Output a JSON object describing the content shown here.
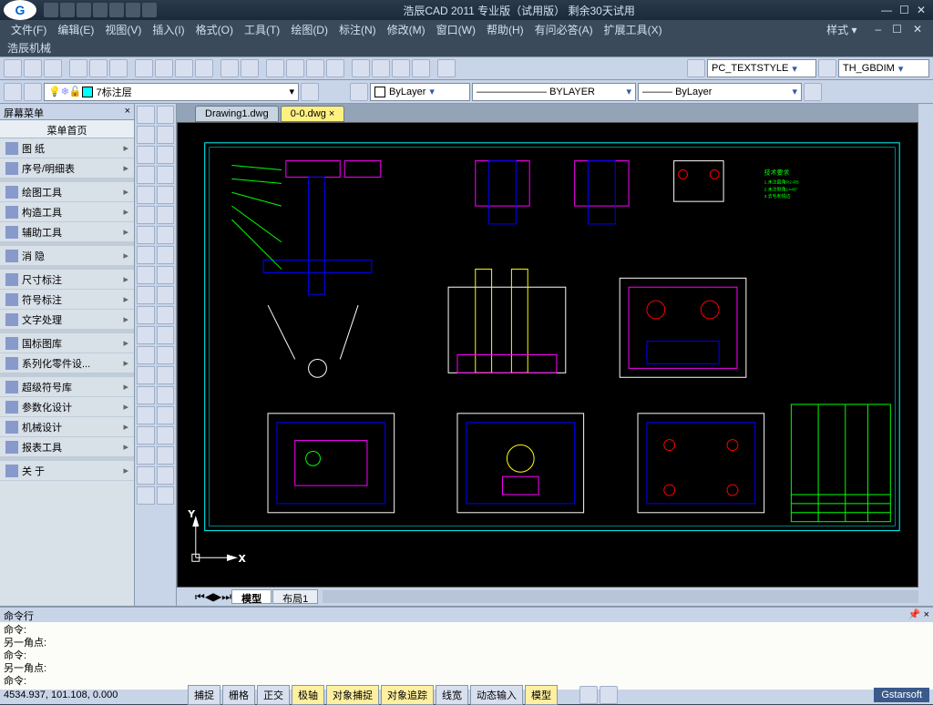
{
  "app": {
    "title": "浩辰CAD 2011 专业版（试用版） 剩余30天试用",
    "logo": "G"
  },
  "menu": {
    "items": [
      "文件(F)",
      "编辑(E)",
      "视图(V)",
      "插入(I)",
      "格式(O)",
      "工具(T)",
      "绘图(D)",
      "标注(N)",
      "修改(M)",
      "窗口(W)",
      "帮助(H)",
      "有问必答(A)",
      "扩展工具(X)"
    ],
    "right": "样式 ▾",
    "sub": "浩辰机械"
  },
  "styles": {
    "textstyle_label": "PC_TEXTSTYLE",
    "dimstyle_label": "TH_GBDIM"
  },
  "layer": {
    "current": "7标注层",
    "color": "ByLayer",
    "linetype": "BYLAYER",
    "lineweight": "ByLayer"
  },
  "leftpanel": {
    "header": "屏幕菜单",
    "menutitle": "菜单首页",
    "groups": [
      [
        "图    纸",
        "序号/明细表"
      ],
      [
        "绘图工具",
        "构造工具",
        "辅助工具"
      ],
      [
        "消    隐"
      ],
      [
        "尺寸标注",
        "符号标注",
        "文字处理"
      ],
      [
        "国标图库",
        "系列化零件设..."
      ],
      [
        "超级符号库",
        "参数化设计",
        "机械设计",
        "报表工具"
      ],
      [
        "关  于"
      ]
    ]
  },
  "tabs": {
    "files": [
      "Drawing1.dwg",
      "0-0.dwg"
    ],
    "active": 1,
    "bottom": [
      "模型",
      "布局1"
    ],
    "bottom_active": 0
  },
  "drawing": {
    "border_color": "#00ffff",
    "colors": {
      "cyan": "#00ffff",
      "magenta": "#ff00ff",
      "yellow": "#ffff00",
      "green": "#00ff00",
      "blue": "#0000ff",
      "red": "#ff0000",
      "white": "#ffffff"
    },
    "annotation_color": "#00ff00",
    "axis_label_y": "Y",
    "axis_label_x": "X"
  },
  "command": {
    "header": "命令行",
    "lines": [
      "命令:",
      "另一角点:",
      "命令:",
      "另一角点:",
      "命令:"
    ]
  },
  "status": {
    "coords": "4534.937, 101.108, 0.000",
    "buttons": [
      {
        "label": "捕捉",
        "on": false
      },
      {
        "label": "栅格",
        "on": false
      },
      {
        "label": "正交",
        "on": false
      },
      {
        "label": "极轴",
        "on": true
      },
      {
        "label": "对象捕捉",
        "on": true
      },
      {
        "label": "对象追踪",
        "on": true
      },
      {
        "label": "线宽",
        "on": false
      },
      {
        "label": "动态输入",
        "on": false
      },
      {
        "label": "模型",
        "on": true
      }
    ],
    "brand": "Gstarsoft"
  }
}
